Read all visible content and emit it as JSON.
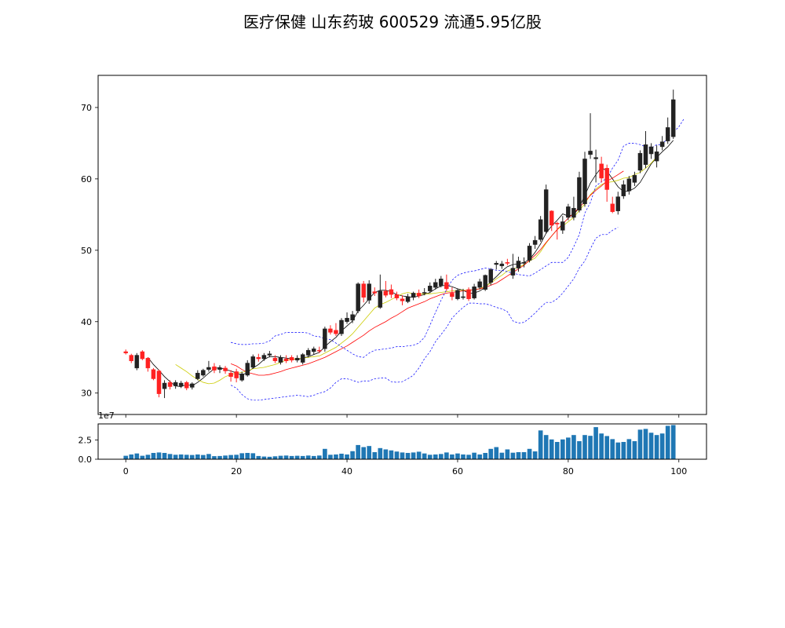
{
  "title": "医疗保健 山东药玻 600529 流通5.95亿股",
  "chart_data": [
    {
      "type": "candlestick",
      "x": [
        0,
        1,
        2,
        3,
        4,
        5,
        6,
        7,
        8,
        9,
        10,
        11,
        12,
        13,
        14,
        15,
        16,
        17,
        18,
        19,
        20,
        21,
        22,
        23,
        24,
        25,
        26,
        27,
        28,
        29,
        30,
        31,
        32,
        33,
        34,
        35,
        36,
        37,
        38,
        39,
        40,
        41,
        42,
        43,
        44,
        45,
        46,
        47,
        48,
        49,
        50,
        51,
        52,
        53,
        54,
        55,
        56,
        57,
        58,
        59,
        60,
        61,
        62,
        63,
        64,
        65,
        66,
        67,
        68,
        69,
        70,
        71,
        72,
        73,
        74,
        75,
        76,
        77,
        78,
        79,
        80,
        81,
        82,
        83,
        84,
        85,
        86,
        87,
        88,
        89,
        90,
        91,
        92,
        93,
        94,
        95,
        96,
        97,
        98,
        99
      ],
      "open": [
        35.8,
        35.3,
        33.5,
        35.8,
        34.9,
        33.3,
        33.1,
        30.6,
        31.5,
        31.0,
        31.0,
        31.5,
        30.8,
        32.0,
        32.5,
        33.3,
        33.7,
        33.3,
        33.5,
        32.8,
        33.0,
        31.8,
        32.5,
        33.6,
        35.0,
        34.8,
        35.3,
        34.9,
        34.3,
        34.8,
        35.0,
        34.6,
        34.3,
        35.3,
        35.8,
        36.0,
        36.2,
        39.0,
        38.8,
        38.3,
        40.0,
        40.2,
        41.5,
        45.3,
        43.0,
        44.2,
        42.0,
        44.3,
        44.5,
        43.8,
        43.2,
        42.8,
        43.4,
        44.0,
        44.0,
        44.3,
        44.8,
        45.0,
        45.5,
        44.0,
        43.2,
        43.4,
        44.5,
        43.3,
        44.8,
        44.5,
        45.5,
        48.0,
        47.8,
        48.3,
        46.5,
        47.5,
        48.3,
        48.6,
        50.8,
        51.5,
        52.6,
        55.5,
        53.8,
        52.8,
        54.6,
        54.6,
        55.6,
        56.5,
        63.4,
        62.8,
        62.1,
        61.5,
        56.5,
        55.5,
        57.6,
        58.3,
        59.5,
        61.2,
        62.0,
        63.5,
        62.5,
        64.5,
        65.3,
        65.9
      ],
      "close": [
        35.6,
        34.5,
        35.3,
        34.8,
        33.5,
        32.0,
        29.9,
        31.4,
        30.9,
        31.5,
        31.4,
        30.7,
        31.3,
        32.8,
        33.2,
        33.6,
        33.2,
        33.5,
        33.1,
        32.3,
        32.1,
        32.7,
        34.2,
        35.1,
        34.8,
        35.3,
        35.5,
        34.5,
        35.0,
        34.5,
        34.6,
        34.9,
        35.4,
        36.0,
        36.2,
        35.9,
        39.0,
        38.5,
        38.3,
        40.2,
        40.5,
        41.0,
        45.3,
        43.4,
        45.3,
        44.0,
        44.3,
        43.7,
        43.8,
        43.3,
        42.9,
        43.5,
        44.0,
        43.6,
        44.1,
        45.0,
        45.5,
        46.0,
        44.6,
        43.5,
        44.4,
        43.5,
        43.2,
        44.9,
        45.6,
        46.5,
        47.3,
        48.2,
        48.1,
        48.2,
        47.5,
        48.5,
        48.3,
        50.6,
        51.4,
        54.3,
        58.5,
        53.5,
        53.7,
        54.0,
        56.1,
        55.9,
        60.2,
        62.8,
        63.9,
        63.0,
        60.1,
        58.5,
        55.4,
        57.5,
        59.2,
        60.0,
        60.5,
        63.6,
        64.8,
        64.5,
        63.8,
        65.2,
        67.2,
        71.1
      ],
      "high": [
        36.1,
        35.5,
        35.6,
        36.0,
        35.0,
        33.5,
        33.3,
        31.8,
        31.8,
        31.8,
        31.7,
        31.7,
        31.5,
        33.2,
        33.4,
        34.5,
        34.2,
        33.9,
        33.8,
        33.2,
        33.4,
        33.0,
        34.6,
        35.4,
        35.5,
        35.6,
        35.9,
        35.3,
        35.3,
        35.3,
        35.3,
        35.3,
        35.6,
        36.3,
        36.5,
        36.5,
        39.3,
        39.5,
        39.8,
        40.5,
        41.3,
        41.5,
        45.5,
        45.7,
        45.8,
        44.8,
        46.6,
        45.7,
        45.2,
        44.2,
        43.7,
        43.9,
        44.2,
        44.5,
        44.7,
        45.5,
        46.0,
        46.4,
        46.6,
        44.8,
        44.6,
        44.6,
        44.8,
        45.3,
        46.0,
        46.6,
        47.5,
        48.5,
        48.5,
        48.8,
        49.5,
        49.1,
        49.0,
        51.0,
        52.0,
        54.8,
        59.2,
        55.6,
        54.0,
        54.8,
        56.5,
        57.5,
        61.0,
        63.8,
        69.2,
        64.1,
        63.1,
        62.0,
        57.5,
        58.2,
        59.8,
        60.4,
        61.0,
        64.0,
        66.7,
        65.0,
        64.7,
        66.0,
        68.6,
        72.5
      ],
      "low": [
        35.4,
        34.2,
        33.2,
        34.6,
        33.0,
        31.8,
        29.4,
        29.3,
        30.5,
        30.6,
        30.7,
        30.4,
        30.5,
        31.8,
        32.3,
        33.0,
        32.8,
        32.8,
        32.7,
        31.6,
        31.5,
        31.6,
        32.3,
        33.4,
        34.4,
        34.5,
        35.0,
        34.2,
        34.0,
        34.2,
        34.3,
        34.3,
        34.0,
        35.0,
        35.4,
        35.6,
        35.8,
        38.2,
        38.0,
        38.0,
        39.7,
        39.8,
        41.2,
        42.7,
        42.5,
        43.6,
        41.8,
        43.4,
        43.3,
        43.0,
        42.3,
        42.6,
        43.0,
        43.3,
        43.7,
        44.0,
        44.5,
        44.8,
        44.3,
        43.0,
        43.0,
        43.1,
        42.9,
        43.1,
        44.5,
        44.3,
        45.1,
        47.3,
        47.4,
        47.9,
        46.0,
        47.0,
        47.6,
        48.3,
        50.2,
        51.2,
        52.3,
        52.7,
        51.5,
        52.3,
        54.2,
        54.2,
        55.3,
        56.1,
        62.8,
        59.5,
        59.5,
        56.8,
        55.2,
        55.0,
        57.2,
        57.8,
        59.0,
        60.8,
        61.5,
        62.8,
        61.6,
        64.0,
        64.9,
        65.6
      ]
    },
    {
      "type": "line",
      "series": [
        {
          "color": "#000000",
          "values": [
            null,
            null,
            null,
            null,
            35.0,
            34.0,
            33.2,
            32.3,
            31.6,
            31.0,
            30.9,
            31.2,
            31.0,
            31.5,
            32.1,
            32.8,
            33.4,
            33.6,
            33.3,
            33.1,
            32.8,
            32.5,
            32.9,
            33.5,
            34.0,
            34.7,
            35.1,
            35.1,
            35.0,
            34.9,
            34.8,
            34.7,
            34.9,
            35.1,
            35.4,
            35.7,
            36.5,
            37.2,
            37.8,
            38.7,
            39.4,
            40.1,
            41.5,
            42.3,
            43.2,
            44.1,
            44.4,
            44.4,
            44.2,
            43.8,
            43.6,
            43.5,
            43.4,
            43.6,
            43.8,
            44.1,
            44.6,
            45.0,
            45.1,
            44.9,
            44.6,
            44.4,
            44.0,
            44.0,
            44.3,
            44.8,
            45.6,
            46.3,
            47.1,
            47.7,
            48.0,
            48.1,
            48.3,
            48.7,
            49.7,
            50.9,
            52.4,
            53.4,
            54.2,
            55.1,
            54.8,
            55.0,
            56.0,
            57.7,
            59.4,
            60.6,
            61.6,
            61.1,
            60.0,
            58.9,
            58.2,
            58.3,
            58.7,
            59.5,
            60.8,
            62.1,
            63.0,
            63.8,
            64.5,
            65.4
          ]
        },
        {
          "color": "#cccc00",
          "values": [
            null,
            null,
            null,
            null,
            null,
            null,
            null,
            null,
            null,
            34.0,
            33.5,
            33.0,
            32.4,
            31.9,
            31.5,
            31.3,
            31.4,
            31.8,
            32.3,
            32.6,
            32.8,
            32.9,
            33.1,
            33.4,
            33.5,
            33.6,
            33.8,
            34.0,
            34.3,
            34.6,
            34.7,
            34.8,
            34.9,
            35.0,
            35.1,
            35.2,
            35.6,
            36.0,
            36.4,
            37.0,
            37.6,
            38.3,
            39.2,
            40.1,
            41.0,
            41.9,
            42.4,
            42.7,
            43.1,
            43.5,
            43.9,
            44.1,
            43.9,
            43.9,
            43.9,
            43.9,
            44.0,
            44.1,
            44.2,
            44.3,
            44.4,
            44.4,
            44.4,
            44.5,
            44.6,
            45.0,
            45.4,
            46.0,
            46.5,
            47.1,
            47.4,
            47.6,
            48.0,
            48.5,
            48.9,
            49.8,
            51.0,
            52.0,
            52.9,
            53.4,
            54.0,
            54.6,
            55.6,
            56.5,
            57.8,
            58.6,
            59.2,
            59.5,
            59.6,
            59.8,
            60.1,
            60.2,
            60.6,
            60.9,
            61.5,
            62.2,
            63.1
          ]
        },
        {
          "color": "#ff0000",
          "values": [
            null,
            null,
            null,
            null,
            null,
            null,
            null,
            null,
            null,
            null,
            null,
            null,
            null,
            null,
            null,
            null,
            null,
            null,
            null,
            34.1,
            33.8,
            33.3,
            32.9,
            32.7,
            32.5,
            32.5,
            32.6,
            32.8,
            33.0,
            33.3,
            33.5,
            33.7,
            33.9,
            34.1,
            34.4,
            34.7,
            35.0,
            35.4,
            35.8,
            36.2,
            36.6,
            37.1,
            37.6,
            38.1,
            38.7,
            39.2,
            39.6,
            40.0,
            40.5,
            40.9,
            41.4,
            41.9,
            42.2,
            42.5,
            42.8,
            43.2,
            43.5,
            43.8,
            44.0,
            44.1,
            44.2,
            44.3,
            44.4,
            44.5,
            44.6,
            44.8,
            45.1,
            45.4,
            45.9,
            46.4,
            46.9,
            47.4,
            47.9,
            48.6,
            49.3,
            50.1,
            51.1,
            52.0,
            52.9,
            53.7,
            54.5,
            55.2,
            56.0,
            56.8,
            57.7,
            58.4,
            59.0,
            59.7,
            60.1,
            60.6,
            61.1
          ]
        },
        {
          "color": "#0000ff",
          "style": "dashed",
          "values": [
            null,
            null,
            null,
            null,
            null,
            null,
            null,
            null,
            null,
            null,
            null,
            null,
            null,
            null,
            null,
            null,
            null,
            null,
            null,
            37.1,
            36.9,
            36.8,
            36.8,
            36.9,
            36.9,
            37.0,
            37.3,
            38.0,
            38.2,
            38.5,
            38.5,
            38.5,
            38.5,
            38.4,
            38.0,
            37.9,
            37.6,
            37.5,
            37.0,
            36.5,
            36.0,
            35.5,
            35.1,
            35.0,
            35.6,
            36.0,
            36.1,
            36.2,
            36.3,
            36.5,
            36.5,
            36.6,
            36.7,
            37.0,
            37.8,
            39.5,
            41.3,
            43.0,
            44.5,
            45.8,
            46.5,
            46.8,
            47.0,
            47.1,
            47.3,
            47.5,
            47.4,
            47.2,
            47.2,
            47.0,
            46.8,
            46.6,
            46.5,
            46.4,
            46.8,
            47.3,
            47.8,
            48.3,
            48.3,
            48.3,
            49.0,
            50.5,
            52.2,
            55.2,
            56.7,
            59.0,
            59.6,
            60.1,
            61.5,
            62.6,
            64.6,
            65.0,
            65.0,
            64.8,
            64.5,
            64.3,
            64.8,
            64.8,
            65.8,
            66.5,
            67.3,
            68.5
          ]
        },
        {
          "color": "#0000ff",
          "style": "dashed",
          "values": [
            null,
            null,
            null,
            null,
            null,
            null,
            null,
            null,
            null,
            null,
            null,
            null,
            null,
            null,
            null,
            null,
            null,
            null,
            null,
            31.1,
            30.7,
            29.8,
            29.2,
            29.0,
            29.0,
            29.1,
            29.2,
            29.3,
            29.4,
            29.5,
            29.6,
            29.7,
            29.6,
            29.5,
            29.7,
            30.0,
            30.2,
            30.7,
            31.5,
            32.0,
            32.0,
            31.8,
            31.5,
            31.7,
            31.7,
            32.0,
            32.1,
            32.1,
            31.6,
            31.5,
            31.6,
            32.0,
            32.5,
            33.5,
            34.8,
            35.8,
            37.2,
            38.2,
            39.2,
            40.5,
            41.3,
            42.0,
            42.6,
            42.6,
            42.5,
            42.5,
            42.3,
            42.0,
            41.8,
            41.4,
            40.1,
            39.8,
            39.9,
            40.5,
            41.2,
            42.0,
            42.7,
            42.7,
            43.2,
            44.0,
            45.0,
            46.0,
            47.5,
            48.5,
            50.2,
            51.7,
            52.2,
            52.2,
            52.8,
            53.2
          ]
        }
      ],
      "ylim": [
        27,
        74.5
      ],
      "yticks": [
        30,
        40,
        50,
        60,
        70
      ]
    },
    {
      "type": "bar",
      "x": [
        0,
        1,
        2,
        3,
        4,
        5,
        6,
        7,
        8,
        9,
        10,
        11,
        12,
        13,
        14,
        15,
        16,
        17,
        18,
        19,
        20,
        21,
        22,
        23,
        24,
        25,
        26,
        27,
        28,
        29,
        30,
        31,
        32,
        33,
        34,
        35,
        36,
        37,
        38,
        39,
        40,
        41,
        42,
        43,
        44,
        45,
        46,
        47,
        48,
        49,
        50,
        51,
        52,
        53,
        54,
        55,
        56,
        57,
        58,
        59,
        60,
        61,
        62,
        63,
        64,
        65,
        66,
        67,
        68,
        69,
        70,
        71,
        72,
        73,
        74,
        75,
        76,
        77,
        78,
        79,
        80,
        81,
        82,
        83,
        84,
        85,
        86,
        87,
        88,
        89,
        90,
        91,
        92,
        93,
        94,
        95,
        96,
        97,
        98,
        99
      ],
      "values": [
        0.45,
        0.62,
        0.75,
        0.45,
        0.58,
        0.82,
        0.88,
        0.82,
        0.68,
        0.58,
        0.62,
        0.58,
        0.55,
        0.62,
        0.55,
        0.68,
        0.4,
        0.42,
        0.48,
        0.55,
        0.58,
        0.78,
        0.82,
        0.78,
        0.42,
        0.35,
        0.32,
        0.38,
        0.45,
        0.48,
        0.42,
        0.45,
        0.42,
        0.48,
        0.42,
        0.48,
        1.35,
        0.58,
        0.62,
        0.72,
        0.62,
        1.05,
        1.85,
        1.58,
        1.72,
        0.92,
        1.45,
        1.28,
        1.15,
        1.0,
        0.88,
        0.82,
        0.88,
        0.98,
        0.75,
        0.58,
        0.62,
        0.68,
        0.88,
        0.62,
        0.75,
        0.62,
        0.58,
        0.85,
        0.62,
        0.82,
        1.35,
        1.58,
        0.85,
        1.28,
        0.85,
        0.92,
        0.92,
        1.35,
        1.02,
        3.75,
        3.15,
        2.58,
        2.25,
        2.58,
        2.82,
        3.15,
        2.35,
        3.15,
        3.05,
        4.18,
        3.35,
        3.02,
        2.62,
        2.18,
        2.25,
        2.62,
        2.35,
        3.85,
        3.95,
        3.45,
        3.15,
        3.35,
        4.35,
        4.45
      ],
      "value_scale": "1e7",
      "ylim": [
        0,
        4.6
      ],
      "yticks": [
        0.0,
        2.5
      ],
      "xticks": [
        0,
        20,
        40,
        60,
        80,
        100
      ],
      "color": "#1f77b4"
    }
  ]
}
